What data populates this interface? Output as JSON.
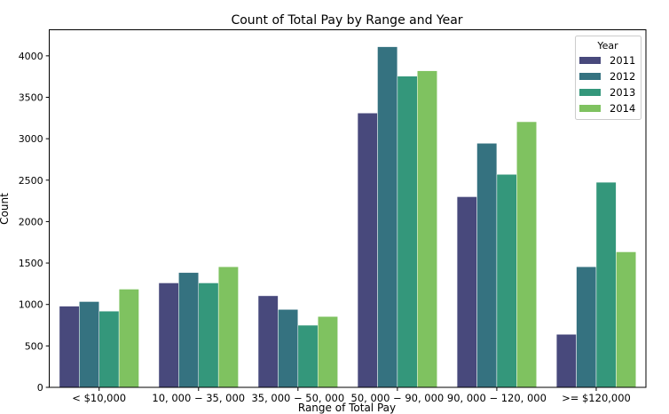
{
  "chart_data": {
    "type": "bar",
    "title": "Count of Total Pay by Range and Year",
    "xlabel": "Range of Total Pay",
    "ylabel": "Count",
    "categories": [
      "< $10,000",
      "10, 000 − 35, 000",
      "35, 000 − 50, 000",
      "50, 000 − 90, 000",
      "90, 000 − 120, 000",
      ">= $120,000"
    ],
    "ylim": [
      0,
      4320
    ],
    "yticks": [
      0,
      500,
      1000,
      1500,
      2000,
      2500,
      3000,
      3500,
      4000
    ],
    "grid": false,
    "legend": {
      "title": "Year",
      "placement": "top-right"
    },
    "series": [
      {
        "name": "2011",
        "color": "#48497c",
        "values": [
          980,
          1260,
          1105,
          3310,
          2300,
          640
        ]
      },
      {
        "name": "2012",
        "color": "#357280",
        "values": [
          1035,
          1385,
          940,
          4110,
          2945,
          1455
        ]
      },
      {
        "name": "2013",
        "color": "#34977b",
        "values": [
          920,
          1260,
          750,
          3755,
          2570,
          2475
        ]
      },
      {
        "name": "2014",
        "color": "#7fc260",
        "values": [
          1185,
          1455,
          855,
          3820,
          3205,
          1635
        ]
      }
    ]
  }
}
